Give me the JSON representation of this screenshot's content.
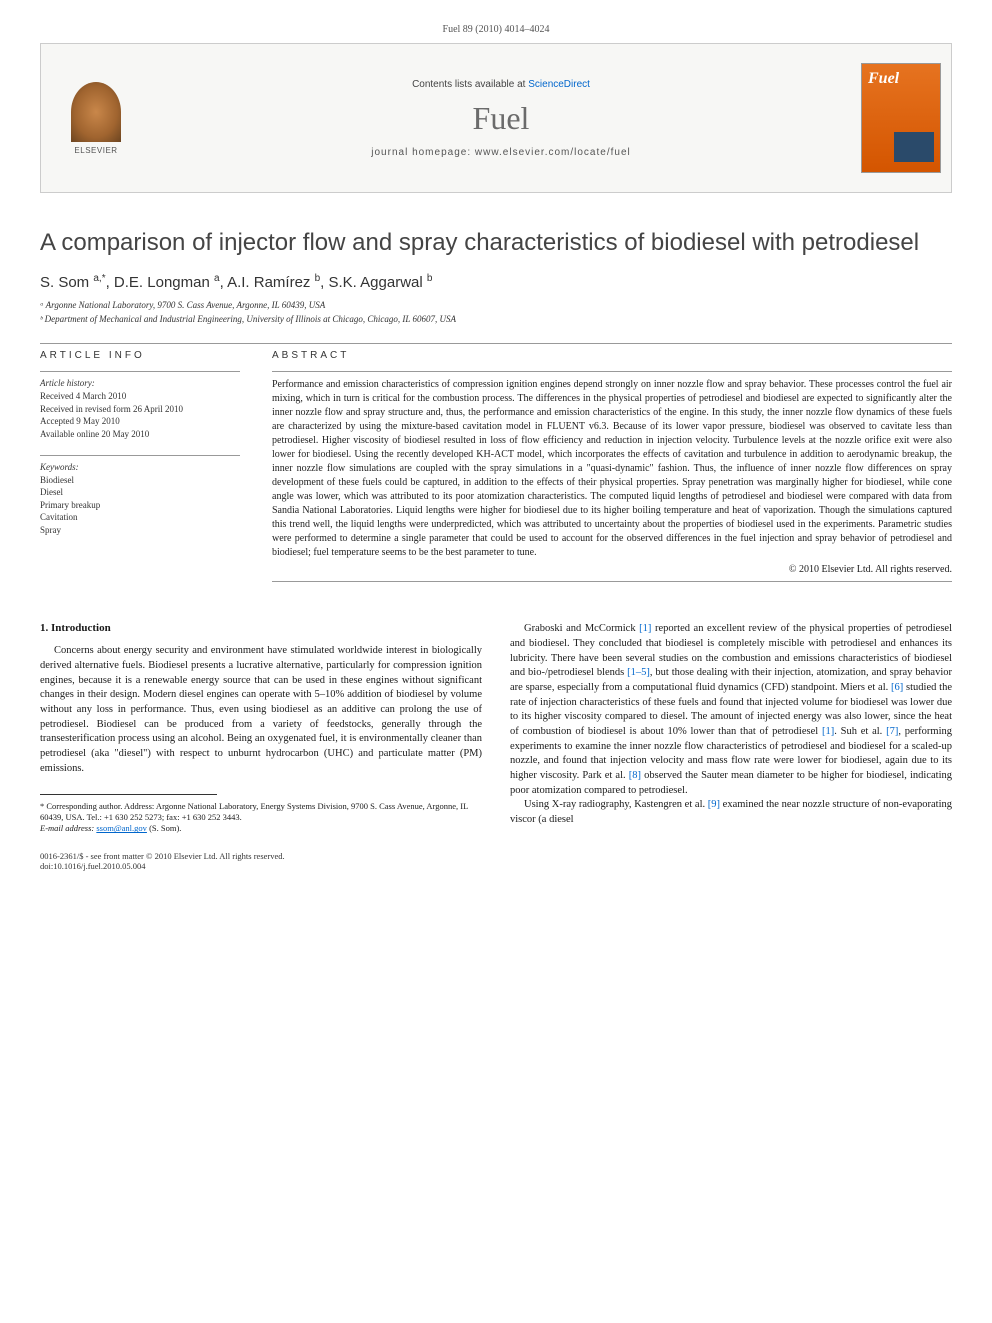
{
  "citation": "Fuel 89 (2010) 4014–4024",
  "banner": {
    "contents_prefix": "Contents lists available at ",
    "contents_link": "ScienceDirect",
    "journal": "Fuel",
    "homepage_prefix": "journal homepage: ",
    "homepage_url": "www.elsevier.com/locate/fuel",
    "publisher_name": "ELSEVIER",
    "cover_title": "Fuel"
  },
  "title": "A comparison of injector flow and spray characteristics of biodiesel with petrodiesel",
  "authors_html": "S. Som <sup>a,*</sup>, D.E. Longman <sup>a</sup>, A.I. Ramírez <sup>b</sup>, S.K. Aggarwal <sup>b</sup>",
  "affiliations": [
    "ᵃ Argonne National Laboratory, 9700 S. Cass Avenue, Argonne, IL 60439, USA",
    "ᵇ Department of Mechanical and Industrial Engineering, University of Illinois at Chicago, Chicago, IL 60607, USA"
  ],
  "info": {
    "heading": "ARTICLE INFO",
    "history_label": "Article history:",
    "history": [
      "Received 4 March 2010",
      "Received in revised form 26 April 2010",
      "Accepted 9 May 2010",
      "Available online 20 May 2010"
    ],
    "keywords_label": "Keywords:",
    "keywords": [
      "Biodiesel",
      "Diesel",
      "Primary breakup",
      "Cavitation",
      "Spray"
    ]
  },
  "abstract": {
    "heading": "ABSTRACT",
    "text": "Performance and emission characteristics of compression ignition engines depend strongly on inner nozzle flow and spray behavior. These processes control the fuel air mixing, which in turn is critical for the combustion process. The differences in the physical properties of petrodiesel and biodiesel are expected to significantly alter the inner nozzle flow and spray structure and, thus, the performance and emission characteristics of the engine. In this study, the inner nozzle flow dynamics of these fuels are characterized by using the mixture-based cavitation model in FLUENT v6.3. Because of its lower vapor pressure, biodiesel was observed to cavitate less than petrodiesel. Higher viscosity of biodiesel resulted in loss of flow efficiency and reduction in injection velocity. Turbulence levels at the nozzle orifice exit were also lower for biodiesel. Using the recently developed KH-ACT model, which incorporates the effects of cavitation and turbulence in addition to aerodynamic breakup, the inner nozzle flow simulations are coupled with the spray simulations in a \"quasi-dynamic\" fashion. Thus, the influence of inner nozzle flow differences on spray development of these fuels could be captured, in addition to the effects of their physical properties. Spray penetration was marginally higher for biodiesel, while cone angle was lower, which was attributed to its poor atomization characteristics. The computed liquid lengths of petrodiesel and biodiesel were compared with data from Sandia National Laboratories. Liquid lengths were higher for biodiesel due to its higher boiling temperature and heat of vaporization. Though the simulations captured this trend well, the liquid lengths were underpredicted, which was attributed to uncertainty about the properties of biodiesel used in the experiments. Parametric studies were performed to determine a single parameter that could be used to account for the observed differences in the fuel injection and spray behavior of petrodiesel and biodiesel; fuel temperature seems to be the best parameter to tune.",
    "copyright": "© 2010 Elsevier Ltd. All rights reserved."
  },
  "body": {
    "section1_head": "1. Introduction",
    "col1_p1": "Concerns about energy security and environment have stimulated worldwide interest in biologically derived alternative fuels. Biodiesel presents a lucrative alternative, particularly for compression ignition engines, because it is a renewable energy source that can be used in these engines without significant changes in their design. Modern diesel engines can operate with 5–10% addition of biodiesel by volume without any loss in performance. Thus, even using biodiesel as an additive can prolong the use of petrodiesel. Biodiesel can be produced from a variety of feedstocks, generally through the transesterification process using an alcohol. Being an oxygenated fuel, it is environmentally cleaner than petrodiesel (aka \"diesel\") with respect to unburnt hydrocarbon (UHC) and particulate matter (PM) emissions.",
    "col2_p1": "Graboski and McCormick [1] reported an excellent review of the physical properties of petrodiesel and biodiesel. They concluded that biodiesel is completely miscible with petrodiesel and enhances its lubricity. There have been several studies on the combustion and emissions characteristics of biodiesel and bio-/petrodiesel blends [1–5], but those dealing with their injection, atomization, and spray behavior are sparse, especially from a computational fluid dynamics (CFD) standpoint. Miers et al. [6] studied the rate of injection characteristics of these fuels and found that injected volume for biodiesel was lower due to its higher viscosity compared to diesel. The amount of injected energy was also lower, since the heat of combustion of biodiesel is about 10% lower than that of petrodiesel [1]. Suh et al. [7], performing experiments to examine the inner nozzle flow characteristics of petrodiesel and biodiesel for a scaled-up nozzle, and found that injection velocity and mass flow rate were lower for biodiesel, again due to its higher viscosity. Park et al. [8] observed the Sauter mean diameter to be higher for biodiesel, indicating poor atomization compared to petrodiesel.",
    "col2_p2": "Using X-ray radiography, Kastengren et al. [9] examined the near nozzle structure of non-evaporating viscor (a diesel"
  },
  "footnote": {
    "corr": "* Corresponding author. Address: Argonne National Laboratory, Energy Systems Division, 9700 S. Cass Avenue, Argonne, IL 60439, USA. Tel.: +1 630 252 5273; fax: +1 630 252 3443.",
    "email_label": "E-mail address:",
    "email": "ssom@anl.gov",
    "email_who": "(S. Som)."
  },
  "footer": {
    "line1": "0016-2361/$ - see front matter © 2010 Elsevier Ltd. All rights reserved.",
    "line2": "doi:10.1016/j.fuel.2010.05.004"
  }
}
